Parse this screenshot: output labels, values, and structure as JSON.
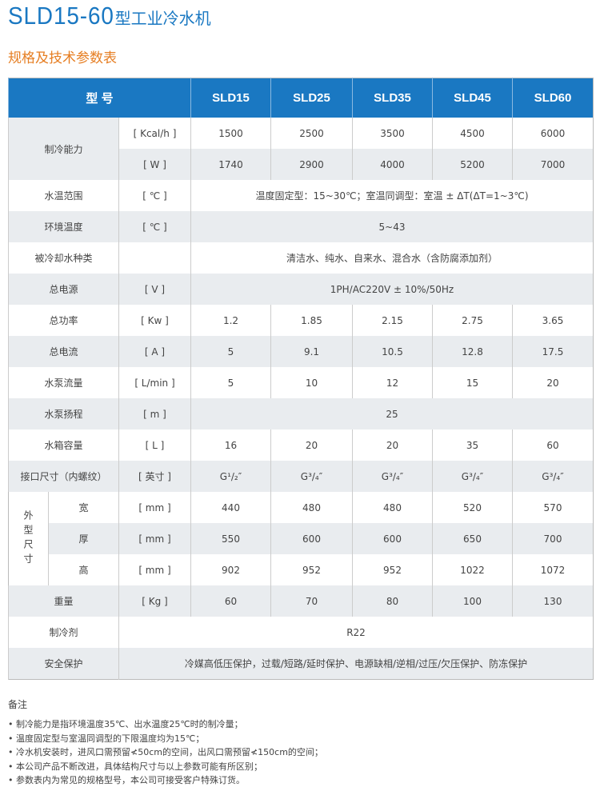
{
  "title": {
    "model": "SLD15-60",
    "suffix": "型工业冷水机"
  },
  "subtitle": "规格及技术参数表",
  "header": {
    "label": "型 号",
    "models": [
      "SLD15",
      "SLD25",
      "SLD35",
      "SLD45",
      "SLD60"
    ]
  },
  "rows": {
    "cap_label": "制冷能力",
    "cap1": {
      "unit": "[ Kcal/h ]",
      "values": [
        "1500",
        "2500",
        "3500",
        "4500",
        "6000"
      ]
    },
    "cap2": {
      "unit": "[ W ]",
      "values": [
        "1740",
        "2900",
        "4000",
        "5200",
        "7000"
      ]
    },
    "water_temp": {
      "label": "水温范围",
      "unit": "[ ℃ ]",
      "value": "温度固定型：15~30℃；室温同调型：室温 ± ΔT(ΔT=1~3℃)"
    },
    "env_temp": {
      "label": "环境温度",
      "unit": "[ ℃ ]",
      "value": "5~43"
    },
    "water_type": {
      "label": "被冷却水种类",
      "unit": "",
      "value": "清洁水、纯水、自来水、混合水（含防腐添加剂）"
    },
    "power_supply": {
      "label": "总电源",
      "unit": "[ V ]",
      "value": "1PH/AC220V ± 10%/50Hz"
    },
    "power": {
      "label": "总功率",
      "unit": "[ Kw ]",
      "values": [
        "1.2",
        "1.85",
        "2.15",
        "2.75",
        "3.65"
      ]
    },
    "current": {
      "label": "总电流",
      "unit": "[ A ]",
      "values": [
        "5",
        "9.1",
        "10.5",
        "12.8",
        "17.5"
      ]
    },
    "flow": {
      "label": "水泵流量",
      "unit": "[ L/min ]",
      "values": [
        "5",
        "10",
        "12",
        "15",
        "20"
      ]
    },
    "head": {
      "label": "水泵扬程",
      "unit": "[ m ]",
      "value": "25"
    },
    "tank": {
      "label": "水箱容量",
      "unit": "[ L ]",
      "values": [
        "16",
        "20",
        "20",
        "35",
        "60"
      ]
    },
    "port": {
      "label": "接口尺寸（内螺纹）",
      "unit": "[ 英寸 ]",
      "values": [
        "G¹/₂″",
        "G³/₄″",
        "G³/₄″",
        "G³/₄″",
        "G³/₄″"
      ]
    },
    "dim_label": "外型尺寸",
    "width": {
      "label": "宽",
      "unit": "[ mm ]",
      "values": [
        "440",
        "480",
        "480",
        "520",
        "570"
      ]
    },
    "depth": {
      "label": "厚",
      "unit": "[ mm ]",
      "values": [
        "550",
        "600",
        "600",
        "650",
        "700"
      ]
    },
    "height": {
      "label": "高",
      "unit": "[ mm ]",
      "values": [
        "902",
        "952",
        "952",
        "1022",
        "1072"
      ]
    },
    "weight": {
      "label": "重量",
      "unit": "[ Kg ]",
      "values": [
        "60",
        "70",
        "80",
        "100",
        "130"
      ]
    },
    "refrigerant": {
      "label": "制冷剂",
      "value": "R22"
    },
    "protection": {
      "label": "安全保护",
      "value": "冷媒高低压保护，过载/短路/延时保护、电源缺相/逆相/过压/欠压保护、防冻保护"
    }
  },
  "notes": {
    "title": "备注",
    "items": [
      "• 制冷能力是指环境温度35℃、出水温度25℃时的制冷量；",
      "• 温度固定型与室温同调型的下限温度均为15℃；",
      "• 冷水机安装时，进风口需预留≮50cm的空间，出风口需预留≮150cm的空间；",
      "• 本公司产品不断改进，具体结构尺寸与以上参数可能有所区别；",
      "• 参数表内为常见的规格型号，本公司可接受客户特殊订货。"
    ]
  }
}
